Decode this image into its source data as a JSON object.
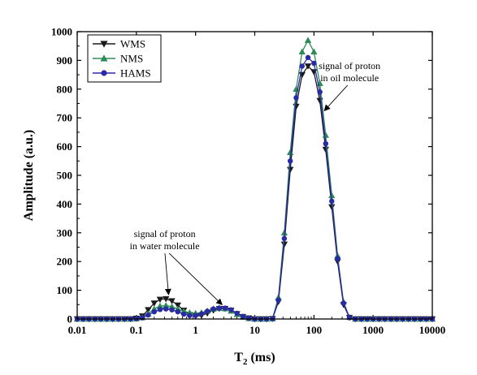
{
  "chart_data": {
    "type": "line",
    "xlabel": "T",
    "xlabel_sub": "2",
    "xlabel_unit": " (ms)",
    "ylabel": "Amplitude (a.u.)",
    "x_scale": "log",
    "xlim": [
      0.01,
      10000
    ],
    "ylim": [
      0,
      1000
    ],
    "x_ticks": [
      0.01,
      0.1,
      1,
      10,
      100,
      1000,
      10000
    ],
    "x_tick_labels": [
      "0.01",
      "0.1",
      "1",
      "10",
      "100",
      "1000",
      "10000"
    ],
    "y_ticks": [
      0,
      100,
      200,
      300,
      400,
      500,
      600,
      700,
      800,
      900,
      1000
    ],
    "y_tick_labels": [
      "0",
      "100",
      "200",
      "300",
      "400",
      "500",
      "600",
      "700",
      "800",
      "900",
      "1000"
    ],
    "grid": false,
    "legend_position": "top-left",
    "x": [
      0.01,
      0.0126,
      0.0158,
      0.02,
      0.0251,
      0.0316,
      0.0398,
      0.0501,
      0.0631,
      0.0794,
      0.1,
      0.126,
      0.158,
      0.2,
      0.251,
      0.316,
      0.398,
      0.501,
      0.631,
      0.794,
      1,
      1.26,
      1.58,
      2,
      2.51,
      3.16,
      3.98,
      5.01,
      6.31,
      7.94,
      10,
      12.6,
      15.8,
      20,
      25.1,
      31.6,
      39.8,
      50.1,
      63.1,
      79.4,
      100,
      126,
      158,
      200,
      251,
      316,
      398,
      501,
      631,
      794,
      1000,
      1260,
      1580,
      2000,
      2510,
      3160,
      3980,
      5010,
      6310,
      7940,
      10000
    ],
    "series": [
      {
        "name": "WMS",
        "color": "#1a1a1a",
        "marker": "triangle-down",
        "values": [
          0,
          0,
          0,
          0,
          0,
          0,
          0,
          0,
          0,
          0,
          2,
          10,
          32,
          55,
          68,
          70,
          63,
          48,
          30,
          15,
          10,
          12,
          20,
          30,
          36,
          36,
          30,
          18,
          8,
          3,
          0,
          0,
          0,
          1,
          60,
          260,
          520,
          740,
          850,
          880,
          860,
          760,
          590,
          390,
          200,
          50,
          5,
          0,
          0,
          0,
          0,
          0,
          0,
          0,
          0,
          0,
          0,
          0,
          0,
          0,
          0
        ]
      },
      {
        "name": "NMS",
        "color": "#2e8b57",
        "marker": "triangle-up",
        "values": [
          0,
          0,
          0,
          0,
          0,
          0,
          0,
          0,
          0,
          0,
          1,
          5,
          18,
          35,
          45,
          47,
          43,
          35,
          27,
          22,
          20,
          22,
          28,
          35,
          38,
          36,
          28,
          16,
          7,
          2,
          0,
          0,
          0,
          1,
          75,
          300,
          580,
          800,
          930,
          970,
          930,
          820,
          640,
          430,
          220,
          60,
          6,
          0,
          0,
          0,
          0,
          0,
          0,
          0,
          0,
          0,
          0,
          0,
          0,
          0,
          0
        ]
      },
      {
        "name": "HAMS",
        "color": "#2a2aa5",
        "marker": "circle",
        "values": [
          0,
          0,
          0,
          0,
          0,
          0,
          0,
          0,
          0,
          0,
          1,
          4,
          14,
          25,
          33,
          35,
          32,
          25,
          17,
          12,
          12,
          18,
          27,
          35,
          38,
          38,
          32,
          20,
          9,
          3,
          0,
          0,
          0,
          1,
          65,
          280,
          550,
          770,
          880,
          910,
          890,
          790,
          610,
          410,
          210,
          55,
          5,
          0,
          0,
          0,
          0,
          0,
          0,
          0,
          0,
          0,
          0,
          0,
          0,
          0,
          0
        ]
      }
    ],
    "annotations": [
      {
        "lines": [
          "signal of proton",
          "in oil molecule"
        ],
        "text_at": [
          400,
          870
        ],
        "arrows_to": [
          [
            150,
            725
          ]
        ]
      },
      {
        "lines": [
          "signal of proton",
          "in water molecule"
        ],
        "text_at": [
          0.3,
          285
        ],
        "arrows_to": [
          [
            0.35,
            85
          ],
          [
            2.8,
            50
          ]
        ]
      }
    ]
  }
}
